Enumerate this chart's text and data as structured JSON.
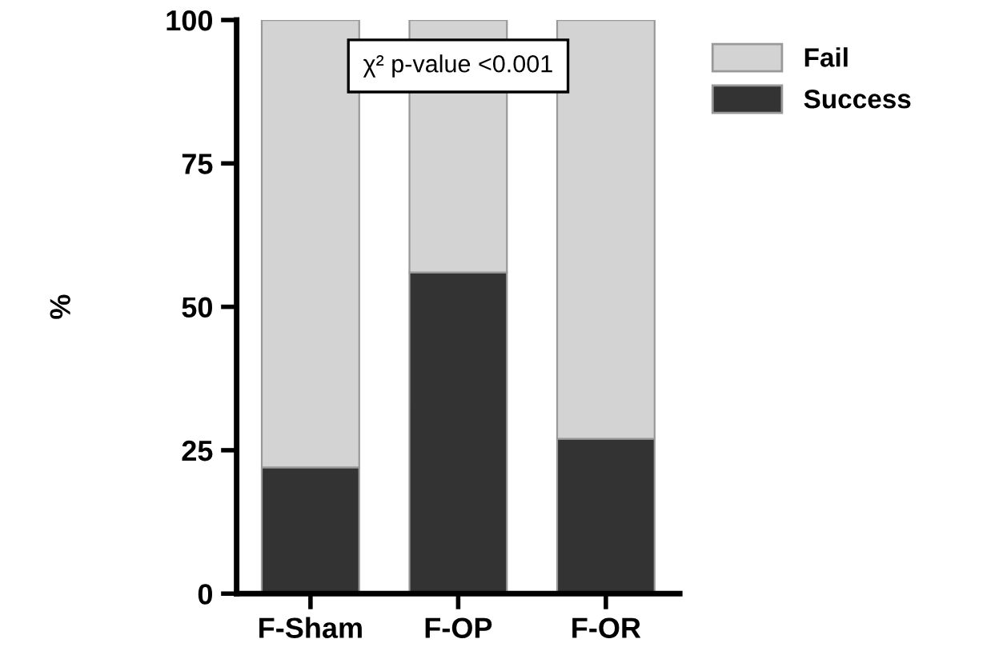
{
  "chart_data": {
    "type": "bar",
    "stacked": true,
    "ylabel": "%",
    "categories": [
      "F-Sham",
      "F-OP",
      "F-OR"
    ],
    "series": [
      {
        "name": "Success",
        "color": "#333333",
        "values": [
          22,
          56,
          27
        ]
      },
      {
        "name": "Fail",
        "color": "#d3d3d3",
        "values": [
          78,
          44,
          73
        ]
      }
    ],
    "ylim": [
      0,
      100
    ],
    "yticks": [
      0,
      25,
      50,
      75,
      100
    ],
    "grid": false,
    "legend": "top right",
    "annotations": [
      "χ² p-value <0.001"
    ]
  }
}
